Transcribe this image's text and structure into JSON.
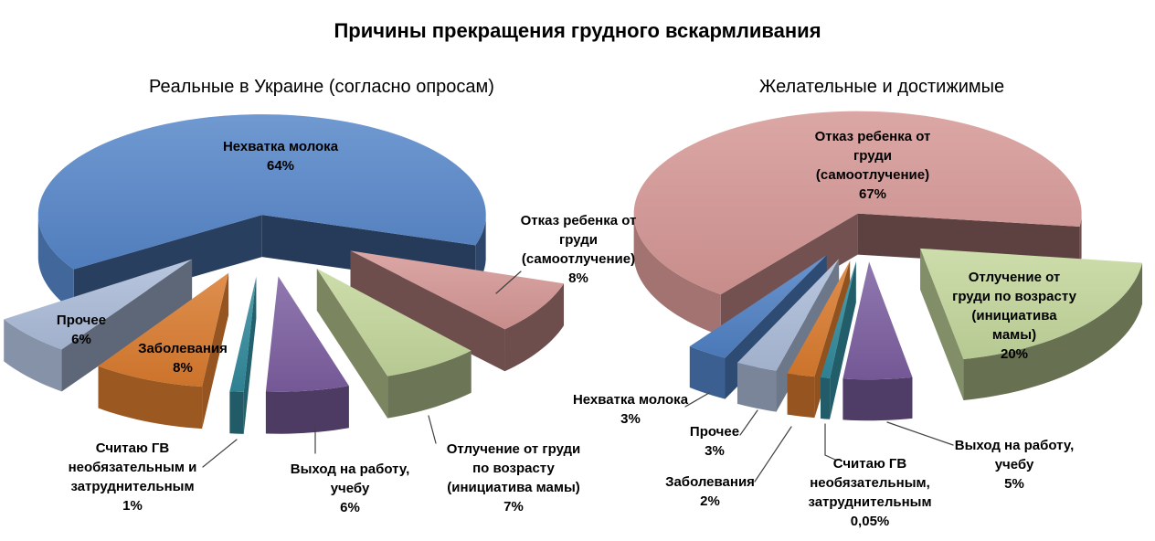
{
  "page": {
    "title": "Причины прекращения грудного вскармливания",
    "background": "#FFFFFF"
  },
  "chart_data": [
    {
      "type": "pie",
      "title": "Реальные в Украине (согласно опросам)",
      "unit": "%",
      "labels": [
        "Нехватка молока",
        "Отказ ребенка от груди (самоотлучение)",
        "Отлучение от груди по возрасту (инициатива мамы)",
        "Выход на работу, учебу",
        "Считаю ГВ необязательным и затруднительным",
        "Заболевания",
        "Прочее"
      ],
      "values": [
        64,
        8,
        7,
        6,
        1,
        8,
        6
      ],
      "colors": [
        "#5585C8",
        "#D49694",
        "#C3D69B",
        "#7B5EA0",
        "#31899B",
        "#D97A2E",
        "#ABBBD8"
      ],
      "callouts": [
        "Нехватка молока\n64%",
        "Отказ ребенка от\nгруди\n(самоотлучение)\n8%",
        "Отлучение от груди\nпо возрасту\n(инициатива мамы)\n7%",
        "Выход на работу,\nучебу\n6%",
        "Считаю ГВ\nнеобязательным и\nзатруднительным\n1%",
        "Заболевания\n8%",
        "Прочее\n6%"
      ],
      "layout": {
        "style": "3d-exploded-pie",
        "legend": "none",
        "data_labels": "callouts"
      }
    },
    {
      "type": "pie",
      "title": "Желательные и достижимые",
      "unit": "%",
      "labels": [
        "Нехватка молока",
        "Отказ ребенка от груди (самоотлучение)",
        "Отлучение от груди по возрасту (инициатива мамы)",
        "Выход на работу, учебу",
        "Считаю ГВ необязательным, затруднительным",
        "Заболевания",
        "Прочее"
      ],
      "values": [
        3,
        67,
        20,
        5,
        0.05,
        2,
        3
      ],
      "colors": [
        "#4F80C3",
        "#D49694",
        "#C3D69B",
        "#7B5EA0",
        "#31899B",
        "#D97A2E",
        "#ABBBD8"
      ],
      "callouts": [
        "Нехватка молока\n3%",
        "Отказ ребенка от\nгруди\n(самоотлучение)\n67%",
        "Отлучение от\nгруди по возрасту\n(инициатива\nмамы)\n20%",
        "Выход на работу,\nучебу\n5%",
        "Считаю ГВ\nнеобязательным,\nзатруднительным\n0,05%",
        "Заболевания\n2%",
        "Прочее\n3%"
      ],
      "layout": {
        "style": "3d-exploded-pie",
        "legend": "none",
        "data_labels": "callouts"
      }
    }
  ]
}
